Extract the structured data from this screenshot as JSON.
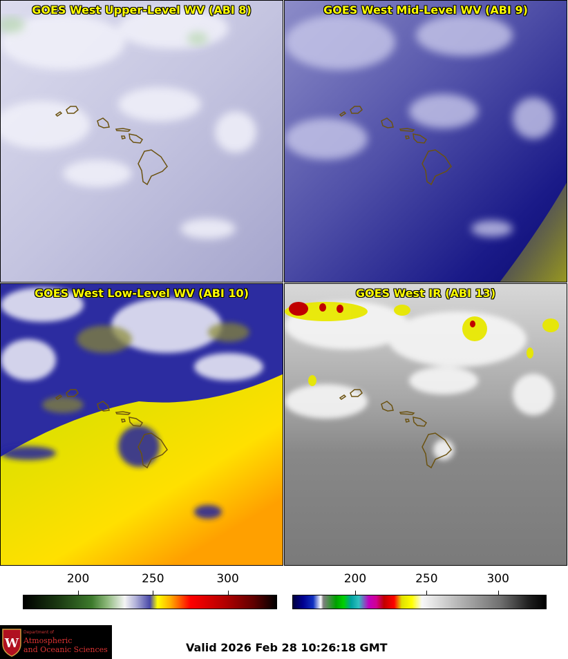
{
  "panels": [
    {
      "title": "GOES West Upper-Level WV (ABI 8)"
    },
    {
      "title": "GOES West Mid-Level WV (ABI 9)"
    },
    {
      "title": "GOES West Low-Level WV (ABI 10)"
    },
    {
      "title": "GOES West IR (ABI 13)"
    }
  ],
  "colorbars": {
    "left": {
      "ticks": [
        "200",
        "250",
        "300"
      ],
      "tick_values": [
        200,
        250,
        300
      ],
      "range": [
        163,
        333
      ]
    },
    "right": {
      "ticks": [
        "200",
        "250",
        "300"
      ],
      "tick_values": [
        200,
        250,
        300
      ],
      "range": [
        156,
        334
      ]
    }
  },
  "logo": {
    "department": "Department of",
    "line1": "Atmospheric",
    "line2": "and Oceanic Sciences",
    "letter": "W"
  },
  "valid_text": "Valid 2026 Feb 28 10:26:18 GMT",
  "colors": {
    "title_text": "#ffff00",
    "coastline": "#6b5210",
    "accent_logo": "#dd3333"
  }
}
